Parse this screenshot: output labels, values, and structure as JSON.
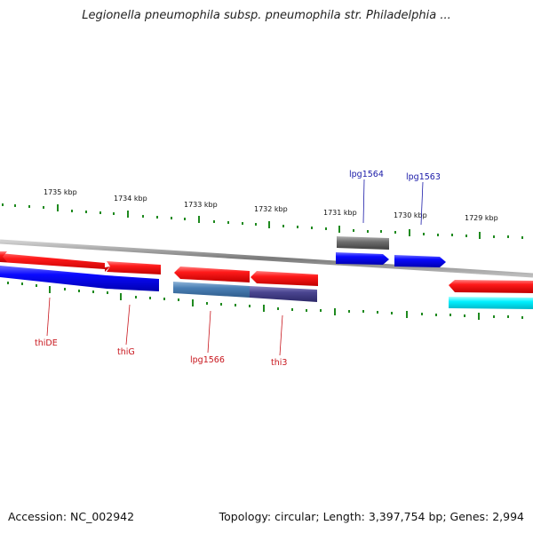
{
  "title": "Legionella pneumophila subsp. pneumophila str. Philadelphia ...",
  "footer": {
    "accession": "Accession: NC_002942",
    "summary": "Topology: circular; Length: 3,397,754 bp; Genes: 2,994"
  },
  "axis_ticks": [
    "1735 kbp",
    "1734 kbp",
    "1733 kbp",
    "1732 kbp",
    "1731 kbp",
    "1730 kbp",
    "1729 kbp"
  ],
  "gene_labels_top": [
    "lpg1564",
    "lpg1563"
  ],
  "gene_labels_bottom": [
    "thiDE",
    "thiG",
    "lpg1566",
    "thi3"
  ],
  "colors": {
    "backbone": "#8c8c8c",
    "forward_gene": "#ff1414",
    "forward_cds": "#0a0aff",
    "reverse_cds_steel": "#4a7fb5",
    "reverse_cds_slate": "#4a4590",
    "gray_gene": "#6e6e6e",
    "cyan_gene": "#00f0ff",
    "tick": "#1f8a1f",
    "label_top": "#1a1aa8",
    "label_bottom": "#c8161d"
  }
}
